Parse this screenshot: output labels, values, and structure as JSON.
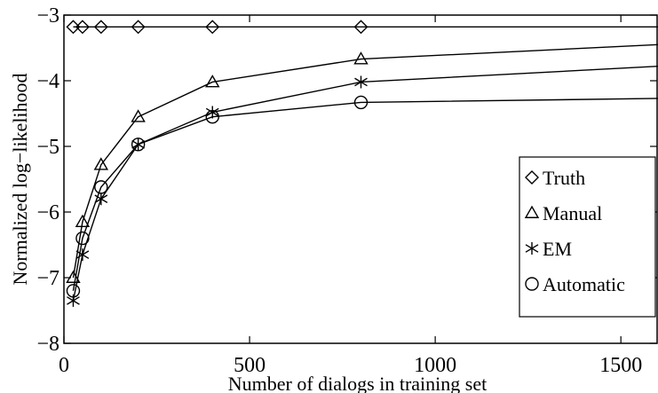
{
  "chart_data": {
    "type": "line",
    "title": "",
    "xlabel": "Number of dialogs in training set",
    "ylabel": "Normalized log−likelihood",
    "xlim": [
      0,
      1600
    ],
    "ylim": [
      -8,
      -3
    ],
    "xticks": [
      0,
      500,
      1000,
      1500
    ],
    "xtick_labels": [
      "0",
      "500",
      "1000",
      "1500"
    ],
    "yticks": [
      -8,
      -7,
      -6,
      -5,
      -4,
      -3
    ],
    "ytick_labels": [
      "−8",
      "−7",
      "−6",
      "−5",
      "−4",
      "−3"
    ],
    "grid": false,
    "legend_position": "lower-right",
    "colors": {
      "line": "#000000",
      "background": "#ffffff"
    },
    "series": [
      {
        "name": "Truth",
        "marker": "diamond",
        "x": [
          25,
          50,
          100,
          200,
          400,
          800,
          1600
        ],
        "y": [
          -3.18,
          -3.18,
          -3.18,
          -3.18,
          -3.18,
          -3.18,
          -3.18
        ],
        "marker_x": [
          25,
          50,
          100,
          200,
          400,
          800
        ]
      },
      {
        "name": "Manual",
        "marker": "triangle",
        "x": [
          25,
          50,
          100,
          200,
          400,
          800,
          1600
        ],
        "y": [
          -7.0,
          -6.15,
          -5.28,
          -4.55,
          -4.02,
          -3.67,
          -3.45
        ],
        "marker_x": [
          25,
          50,
          100,
          200,
          400,
          800
        ]
      },
      {
        "name": "EM",
        "marker": "x",
        "x": [
          25,
          50,
          100,
          200,
          400,
          800,
          1600
        ],
        "y": [
          -7.35,
          -6.65,
          -5.8,
          -4.97,
          -4.48,
          -4.02,
          -3.78
        ],
        "marker_x": [
          25,
          50,
          100,
          200,
          400,
          800
        ]
      },
      {
        "name": "Automatic",
        "marker": "circle",
        "x": [
          25,
          50,
          100,
          200,
          400,
          800,
          1600
        ],
        "y": [
          -7.2,
          -6.4,
          -5.62,
          -4.97,
          -4.55,
          -4.33,
          -4.27
        ],
        "marker_x": [
          25,
          50,
          100,
          200,
          400,
          800
        ]
      }
    ]
  }
}
